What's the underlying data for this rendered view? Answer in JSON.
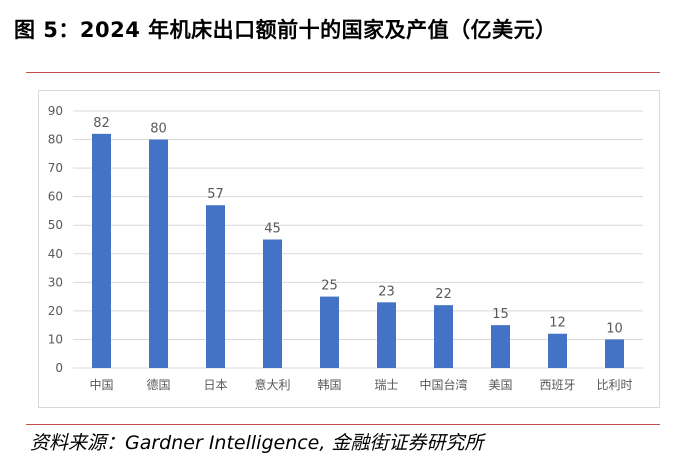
{
  "title": "图 5：2024 年机床出口额前十的国家及产值（亿美元）",
  "source": "资料来源：Gardner Intelligence, 金融街证券研究所",
  "colors": {
    "bar": "#4472c4",
    "rule": "#c0504d",
    "grid": "#d9d9d9",
    "text": "#595959"
  },
  "chart_data": {
    "type": "bar",
    "categories": [
      "中国",
      "德国",
      "日本",
      "意大利",
      "韩国",
      "瑞士",
      "中国台湾",
      "美国",
      "西班牙",
      "比利时"
    ],
    "values": [
      82,
      80,
      57,
      45,
      25,
      23,
      22,
      15,
      12,
      10
    ],
    "ylim": [
      0,
      90
    ],
    "yticks": [
      0,
      10,
      20,
      30,
      40,
      50,
      60,
      70,
      80,
      90
    ],
    "grid": true,
    "data_labels": true
  }
}
